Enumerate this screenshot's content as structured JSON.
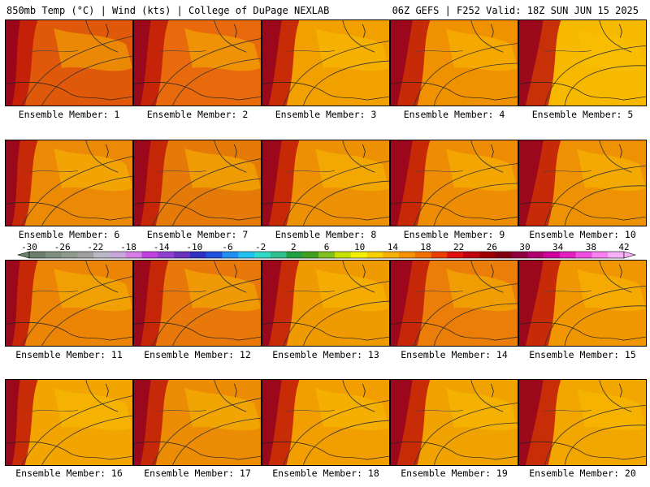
{
  "header": {
    "left": "850mb Temp (°C) | Wind (kts) | College of DuPage NEXLAB",
    "right": "06Z GEFS | F252 Valid: 18Z SUN JUN 15 2025"
  },
  "panels": [
    {
      "label": "Ensemble Member: 1",
      "tint": "#e0580a"
    },
    {
      "label": "Ensemble Member: 2",
      "tint": "#e86a0c"
    },
    {
      "label": "Ensemble Member: 3",
      "tint": "#f2a000"
    },
    {
      "label": "Ensemble Member: 4",
      "tint": "#f09200"
    },
    {
      "label": "Ensemble Member: 5",
      "tint": "#f7b800"
    },
    {
      "label": "Ensemble Member: 6",
      "tint": "#ec8a06"
    },
    {
      "label": "Ensemble Member: 7",
      "tint": "#e57a08"
    },
    {
      "label": "Ensemble Member: 8",
      "tint": "#ee9004"
    },
    {
      "label": "Ensemble Member: 9",
      "tint": "#ee8c04"
    },
    {
      "label": "Ensemble Member: 10",
      "tint": "#ee9204"
    },
    {
      "label": "Ensemble Member: 11",
      "tint": "#ec8406"
    },
    {
      "label": "Ensemble Member: 12",
      "tint": "#e8780a"
    },
    {
      "label": "Ensemble Member: 13",
      "tint": "#f09a02"
    },
    {
      "label": "Ensemble Member: 14",
      "tint": "#ea7e08"
    },
    {
      "label": "Ensemble Member: 15",
      "tint": "#f09600"
    },
    {
      "label": "Ensemble Member: 16",
      "tint": "#f2a400"
    },
    {
      "label": "Ensemble Member: 17",
      "tint": "#ec8c04"
    },
    {
      "label": "Ensemble Member: 18",
      "tint": "#f29e00"
    },
    {
      "label": "Ensemble Member: 19",
      "tint": "#f0a200"
    },
    {
      "label": "Ensemble Member: 20",
      "tint": "#f2a600"
    }
  ],
  "colorbar": {
    "labels": [
      "-30",
      "-26",
      "-22",
      "-18",
      "-14",
      "-10",
      "-6",
      "-2",
      "2",
      "6",
      "10",
      "14",
      "18",
      "22",
      "26",
      "30",
      "34",
      "38",
      "42"
    ],
    "colors": [
      "#6b7f6b",
      "#7f8f7f",
      "#8f9a8f",
      "#a0a0a0",
      "#b8b8c8",
      "#c8a8d8",
      "#d67ee6",
      "#c040e0",
      "#9040d0",
      "#6a30c0",
      "#3030c0",
      "#2050e0",
      "#2090f0",
      "#20c0f0",
      "#30d8c8",
      "#30c090",
      "#20a040",
      "#40a020",
      "#80c020",
      "#c8e000",
      "#f0f000",
      "#f8d000",
      "#f8b000",
      "#f89000",
      "#f07000",
      "#e84000",
      "#e01010",
      "#c00010",
      "#a00000",
      "#800010",
      "#900040",
      "#b00070",
      "#d000a0",
      "#e020c0",
      "#f050e0",
      "#f880f0",
      "#f8b0f8"
    ]
  }
}
